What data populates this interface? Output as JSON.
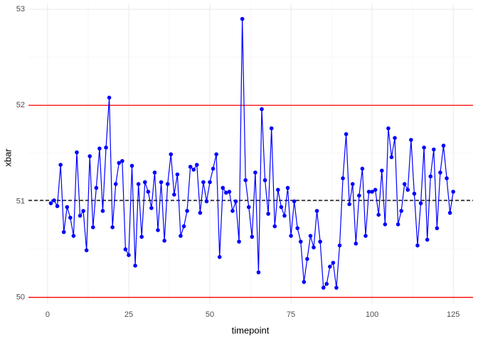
{
  "chart_data": {
    "type": "line",
    "xlabel": "timepoint",
    "ylabel": "xbar",
    "x": [
      1,
      2,
      3,
      4,
      5,
      6,
      7,
      8,
      9,
      10,
      11,
      12,
      13,
      14,
      15,
      16,
      17,
      18,
      19,
      20,
      21,
      22,
      23,
      24,
      25,
      26,
      27,
      28,
      29,
      30,
      31,
      32,
      33,
      34,
      35,
      36,
      37,
      38,
      39,
      40,
      41,
      42,
      43,
      44,
      45,
      46,
      47,
      48,
      49,
      50,
      51,
      52,
      53,
      54,
      55,
      56,
      57,
      58,
      59,
      60,
      61,
      62,
      63,
      64,
      65,
      66,
      67,
      68,
      69,
      70,
      71,
      72,
      73,
      74,
      75,
      76,
      77,
      78,
      79,
      80,
      81,
      82,
      83,
      84,
      85,
      86,
      87,
      88,
      89,
      90,
      91,
      92,
      93,
      94,
      95,
      96,
      97,
      98,
      99,
      100,
      101,
      102,
      103,
      104,
      105,
      106,
      107,
      108,
      109,
      110,
      111,
      112,
      113,
      114,
      115,
      116,
      117,
      118,
      119,
      120,
      121,
      122,
      123,
      124,
      125
    ],
    "series": [
      {
        "name": "xbar",
        "color": "#0000ff",
        "values": [
          50.98,
          51.01,
          50.95,
          51.38,
          50.68,
          50.94,
          50.83,
          50.64,
          51.51,
          50.85,
          50.9,
          50.49,
          51.47,
          50.73,
          51.14,
          51.55,
          50.9,
          51.56,
          52.08,
          50.73,
          51.18,
          51.4,
          51.42,
          50.5,
          50.44,
          51.37,
          50.33,
          51.18,
          50.63,
          51.2,
          51.1,
          50.93,
          51.3,
          50.7,
          51.2,
          50.59,
          51.18,
          51.49,
          51.07,
          51.28,
          50.64,
          50.74,
          50.9,
          51.36,
          51.33,
          51.38,
          50.88,
          51.2,
          51.0,
          51.2,
          51.34,
          51.49,
          50.42,
          51.14,
          51.09,
          51.1,
          50.9,
          51.0,
          50.58,
          52.9,
          51.22,
          50.94,
          50.63,
          51.3,
          50.26,
          51.96,
          51.22,
          50.87,
          51.76,
          50.74,
          51.12,
          50.94,
          50.85,
          51.14,
          50.64,
          51.0,
          50.72,
          50.58,
          50.16,
          50.4,
          50.64,
          50.52,
          50.9,
          50.58,
          50.1,
          50.14,
          50.32,
          50.36,
          50.1,
          50.54,
          51.24,
          51.7,
          50.97,
          51.18,
          50.56,
          51.06,
          51.34,
          50.64,
          51.1,
          51.1,
          51.12,
          50.86,
          51.32,
          50.76,
          51.76,
          51.46,
          51.66,
          50.76,
          50.9,
          51.18,
          51.12,
          51.64,
          51.08,
          50.54,
          50.98,
          51.56,
          50.6,
          51.26,
          51.54,
          50.72,
          51.3,
          51.58,
          51.24,
          50.88,
          51.1
        ]
      }
    ],
    "reference_lines": [
      {
        "value": 52,
        "color": "#ff0000",
        "style": "solid"
      },
      {
        "value": 51.01,
        "color": "#000000",
        "style": "dashed"
      },
      {
        "value": 50,
        "color": "#ff0000",
        "style": "solid"
      }
    ],
    "xlim": [
      -5.9,
      131.1
    ],
    "xticks": [
      0,
      25,
      50,
      75,
      100,
      125
    ],
    "ylim": [
      49.93,
      53.06
    ],
    "yticks": [
      50,
      51,
      52,
      53
    ],
    "grid": true
  }
}
